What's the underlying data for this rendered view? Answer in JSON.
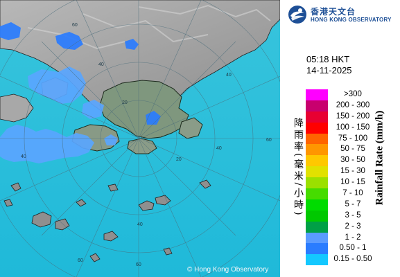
{
  "map": {
    "copyright": "© Hong Kong Observatory",
    "range_labels": [
      "60",
      "40",
      "20",
      "20",
      "40",
      "60",
      "40",
      "60",
      "40",
      "60",
      "40"
    ]
  },
  "header": {
    "logo_cn": "香港天文台",
    "logo_en": "HONG KONG OBSERVATORY"
  },
  "timestamp": {
    "time": "05:18 HKT",
    "date": "14-11-2025"
  },
  "legend": {
    "title_cn": "降雨率(毫米/小時)",
    "title_en": "Rainfall Rate (mm/h)",
    "items": [
      {
        "label": ">300",
        "color": "#ff00ff"
      },
      {
        "label": "200 - 300",
        "color": "#c8006e"
      },
      {
        "label": "150 - 200",
        "color": "#e80032"
      },
      {
        "label": "100 - 150",
        "color": "#ff0000"
      },
      {
        "label": "75 - 100",
        "color": "#ff6400"
      },
      {
        "label": "50 - 75",
        "color": "#ff9600"
      },
      {
        "label": "30 - 50",
        "color": "#ffc800"
      },
      {
        "label": "15 - 30",
        "color": "#e1e100"
      },
      {
        "label": "10 - 15",
        "color": "#9be000"
      },
      {
        "label": "7 - 10",
        "color": "#46dc00"
      },
      {
        "label": "5 - 7",
        "color": "#00dc00"
      },
      {
        "label": "3 - 5",
        "color": "#00c800"
      },
      {
        "label": "2 - 3",
        "color": "#00a046"
      },
      {
        "label": "1 - 2",
        "color": "#5a9bff"
      },
      {
        "label": "0.50 - 1",
        "color": "#2a7cff"
      },
      {
        "label": "0.15 - 0.50",
        "color": "#14c8ff"
      }
    ]
  }
}
